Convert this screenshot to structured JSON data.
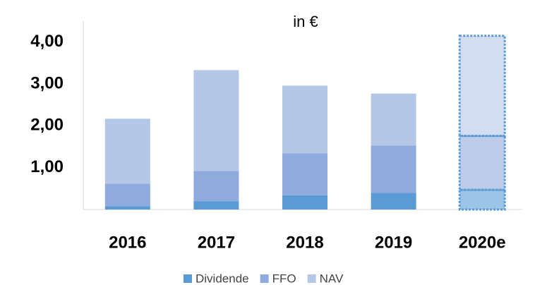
{
  "chart_data": {
    "type": "stacked_bar",
    "subtitle": "in €",
    "categories": [
      "2016",
      "2017",
      "2018",
      "2019",
      "2020e"
    ],
    "projected": [
      false,
      false,
      false,
      false,
      true
    ],
    "series": [
      {
        "name": "Dividende",
        "color": "#5b9bd5",
        "values": [
          0.08,
          0.2,
          0.34,
          0.4,
          0.47
        ]
      },
      {
        "name": "FFO",
        "color": "#8faadc",
        "values": [
          0.54,
          0.72,
          1.0,
          1.13,
          1.29
        ]
      },
      {
        "name": "NAV",
        "color": "#b4c7e7",
        "values": [
          1.55,
          2.41,
          1.62,
          1.24,
          2.39
        ]
      }
    ],
    "ylim": [
      0,
      4.5
    ],
    "yticks": [
      {
        "value": 1,
        "label": "1,00"
      },
      {
        "value": 2,
        "label": "2,00"
      },
      {
        "value": 3,
        "label": "3,00"
      },
      {
        "value": 4,
        "label": "4,00"
      }
    ],
    "grid": false,
    "legend": "bottom"
  }
}
